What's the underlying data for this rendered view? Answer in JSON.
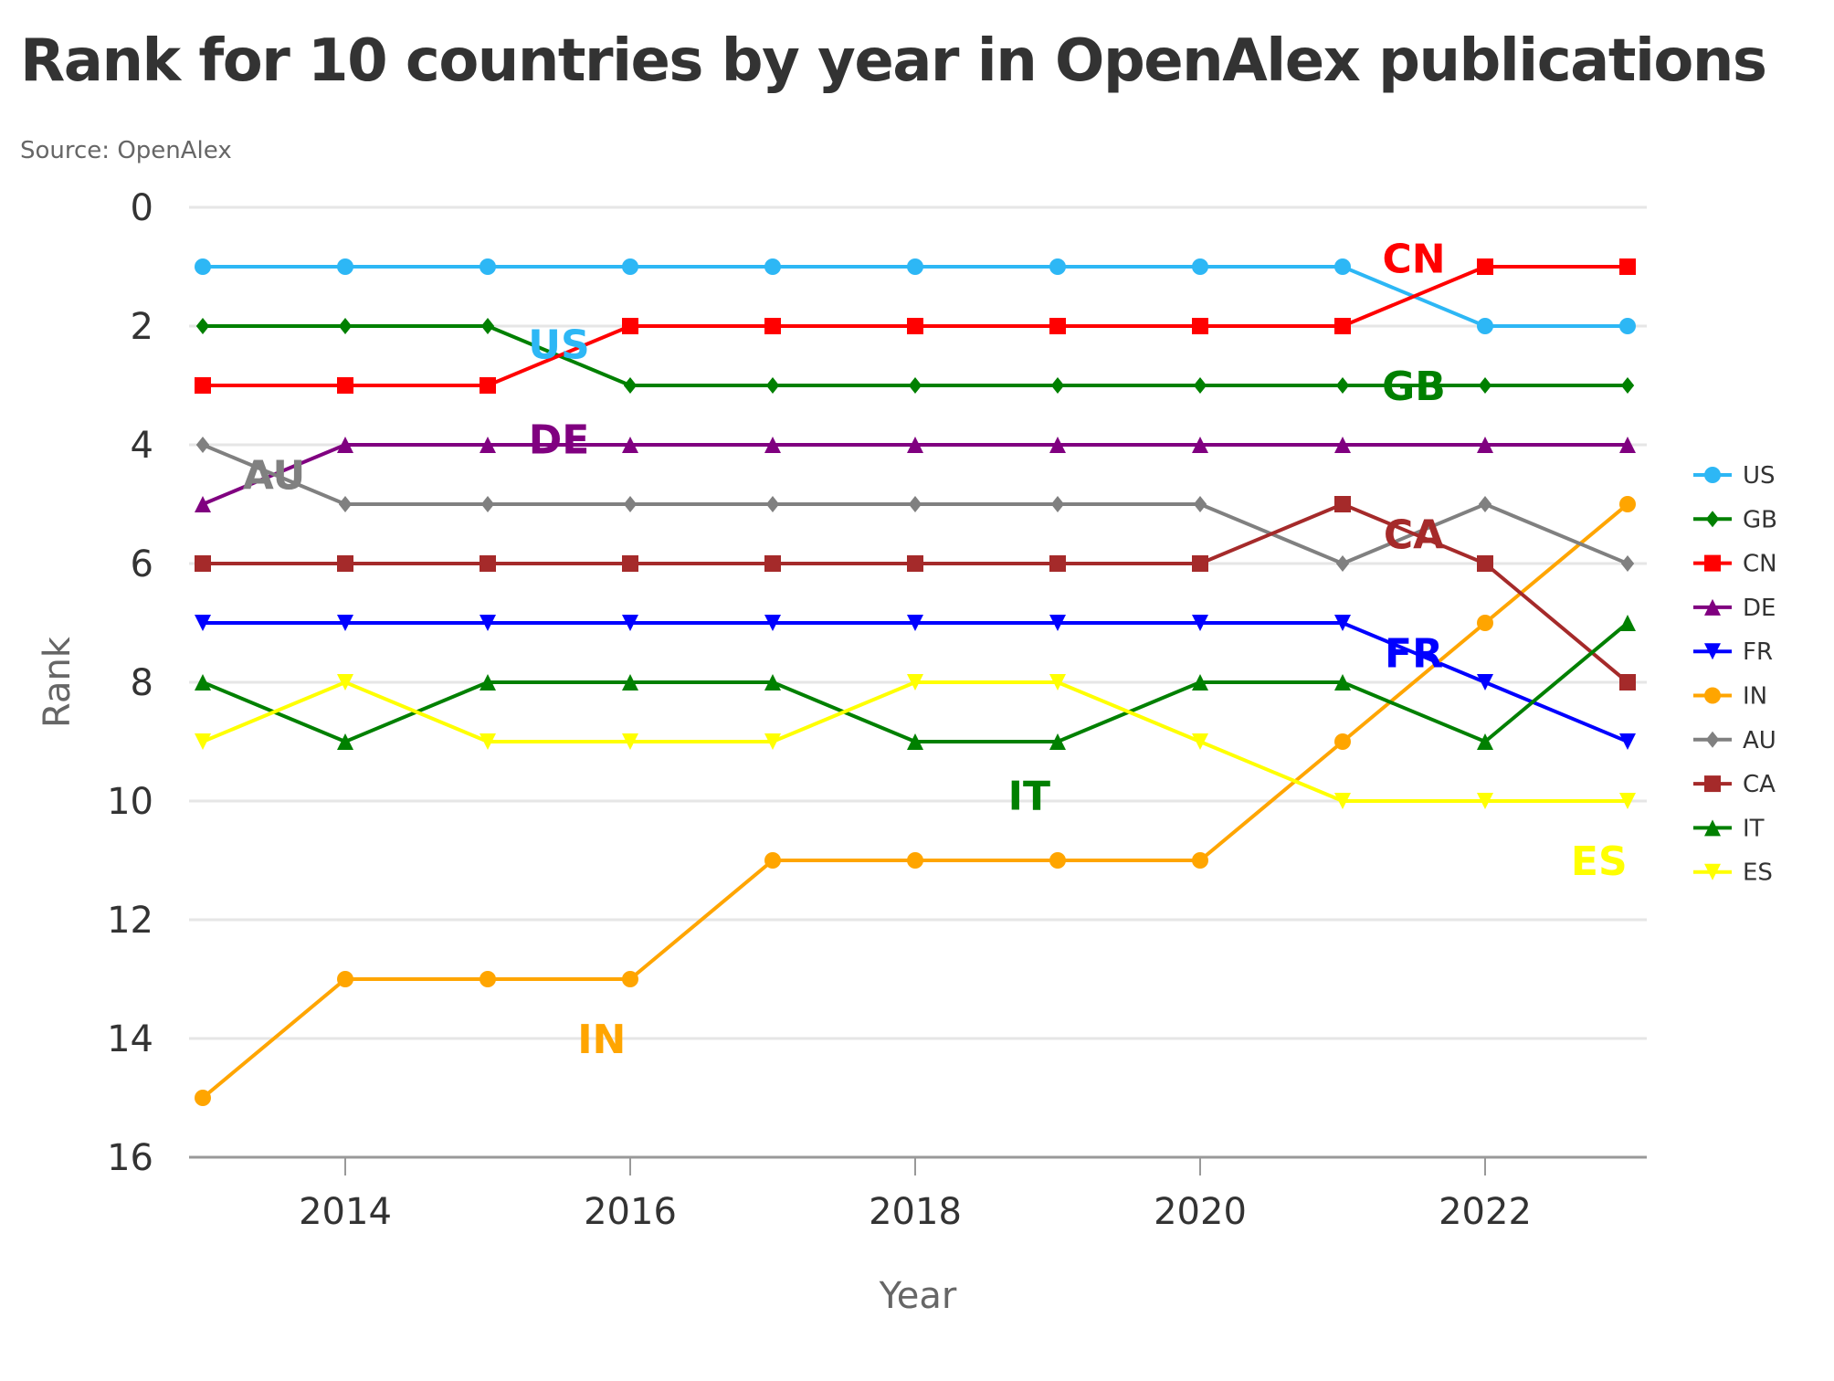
{
  "chart_data": {
    "type": "line",
    "title": "Rank for 10 countries by year in OpenAlex publications",
    "subtitle": "Source: OpenAlex",
    "xlabel": "Year",
    "ylabel": "Rank",
    "x": [
      2013,
      2014,
      2015,
      2016,
      2017,
      2018,
      2019,
      2020,
      2021,
      2022,
      2023
    ],
    "xlim": [
      2013,
      2023
    ],
    "xticks": [
      2014,
      2016,
      2018,
      2020,
      2022
    ],
    "ylim": [
      0,
      16
    ],
    "y_reversed": true,
    "yticks": [
      0,
      2,
      4,
      6,
      8,
      10,
      12,
      14,
      16
    ],
    "grid": true,
    "legend_position": "right",
    "series": [
      {
        "name": "US",
        "color": "#2db7f5",
        "marker": "circle",
        "values": [
          1,
          1,
          1,
          1,
          1,
          1,
          1,
          1,
          1,
          2,
          2
        ]
      },
      {
        "name": "GB",
        "color": "#008000",
        "marker": "diamond",
        "values": [
          2,
          2,
          2,
          3,
          3,
          3,
          3,
          3,
          3,
          3,
          3
        ]
      },
      {
        "name": "CN",
        "color": "#ff0000",
        "marker": "square",
        "values": [
          3,
          3,
          3,
          2,
          2,
          2,
          2,
          2,
          2,
          1,
          1
        ]
      },
      {
        "name": "DE",
        "color": "#800080",
        "marker": "triangle",
        "values": [
          5,
          4,
          4,
          4,
          4,
          4,
          4,
          4,
          4,
          4,
          4
        ]
      },
      {
        "name": "FR",
        "color": "#0000ff",
        "marker": "triangle-down",
        "values": [
          7,
          7,
          7,
          7,
          7,
          7,
          7,
          7,
          7,
          8,
          9
        ]
      },
      {
        "name": "IN",
        "color": "#ffa500",
        "marker": "circle",
        "values": [
          15,
          13,
          13,
          13,
          11,
          11,
          11,
          11,
          9,
          7,
          5
        ]
      },
      {
        "name": "AU",
        "color": "#808080",
        "marker": "diamond",
        "values": [
          4,
          5,
          5,
          5,
          5,
          5,
          5,
          5,
          6,
          5,
          6
        ]
      },
      {
        "name": "CA",
        "color": "#a52a2a",
        "marker": "square",
        "values": [
          6,
          6,
          6,
          6,
          6,
          6,
          6,
          6,
          5,
          6,
          8
        ]
      },
      {
        "name": "IT",
        "color": "#008000",
        "marker": "triangle",
        "values": [
          8,
          9,
          8,
          8,
          8,
          9,
          9,
          8,
          8,
          9,
          7
        ]
      },
      {
        "name": "ES",
        "color": "#ffff00",
        "marker": "triangle-down",
        "values": [
          9,
          8,
          9,
          9,
          9,
          8,
          8,
          9,
          10,
          10,
          10
        ]
      }
    ],
    "annotations": [
      {
        "text": "US",
        "color": "#2db7f5",
        "x": 2015.5,
        "y": 2.3
      },
      {
        "text": "CN",
        "color": "#ff0000",
        "x": 2021.5,
        "y": 0.85
      },
      {
        "text": "GB",
        "color": "#008000",
        "x": 2021.5,
        "y": 3.0
      },
      {
        "text": "DE",
        "color": "#800080",
        "x": 2015.5,
        "y": 3.9
      },
      {
        "text": "AU",
        "color": "#808080",
        "x": 2013.5,
        "y": 4.5
      },
      {
        "text": "CA",
        "color": "#a52a2a",
        "x": 2021.5,
        "y": 5.5
      },
      {
        "text": "FR",
        "color": "#0000ff",
        "x": 2021.5,
        "y": 7.5
      },
      {
        "text": "IT",
        "color": "#008000",
        "x": 2018.8,
        "y": 9.9
      },
      {
        "text": "ES",
        "color": "#ffff00",
        "x": 2022.8,
        "y": 11.0
      },
      {
        "text": "IN",
        "color": "#ffa500",
        "x": 2015.8,
        "y": 14.0
      }
    ]
  }
}
